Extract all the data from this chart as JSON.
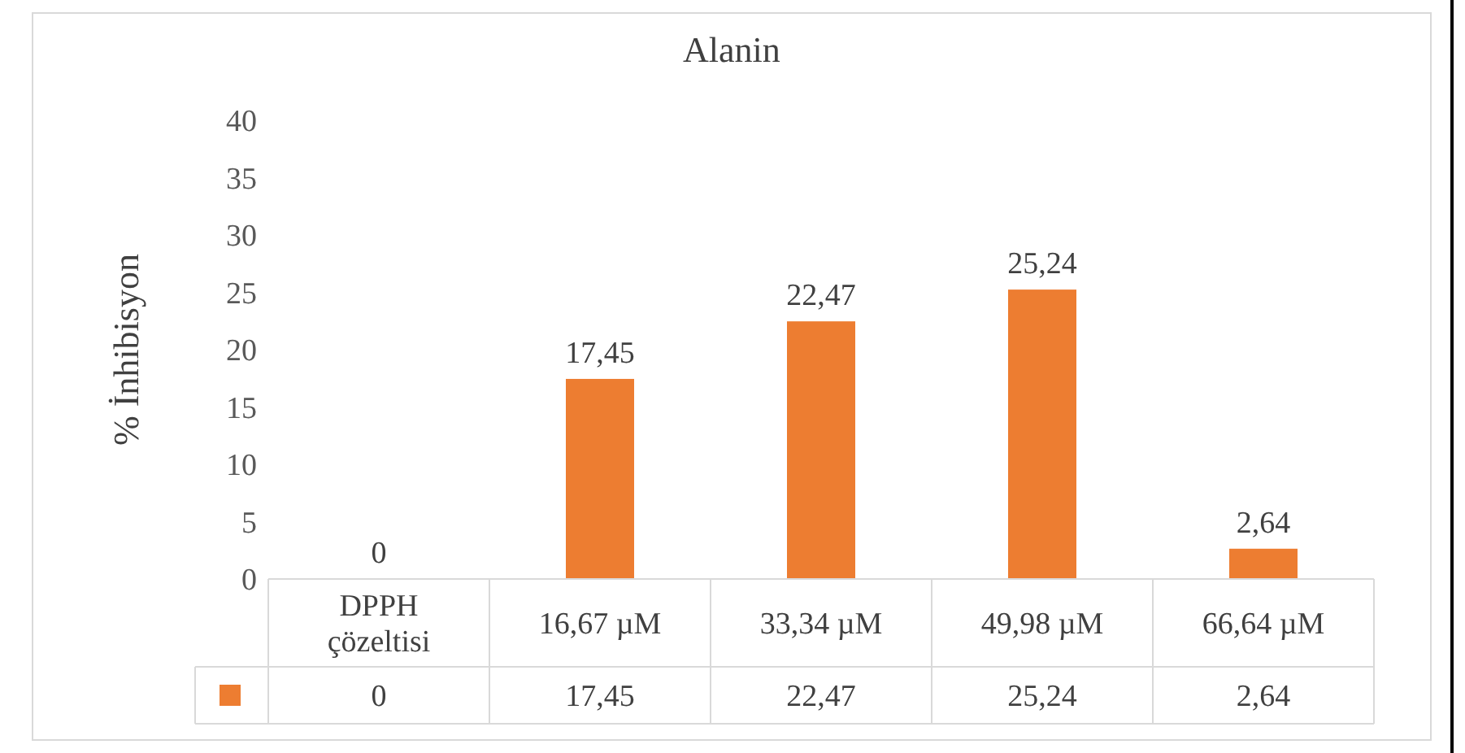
{
  "chart_data": {
    "type": "bar",
    "title": "Alanin",
    "ylabel": "% İnhibisyon",
    "categories": [
      "DPPH çözeltisi",
      "16,67 µM",
      "33,34 µM",
      "49,98 µM",
      "66,64 µM"
    ],
    "series": [
      {
        "color": "#ed7d31",
        "values": [
          0,
          17.45,
          22.47,
          25.24,
          2.64
        ],
        "value_labels": [
          "0",
          "17,45",
          "22,47",
          "25,24",
          "2,64"
        ]
      }
    ],
    "ylim": [
      0,
      40
    ],
    "yticks": [
      0,
      5,
      10,
      15,
      20,
      25,
      30,
      35,
      40
    ],
    "grid": false
  }
}
